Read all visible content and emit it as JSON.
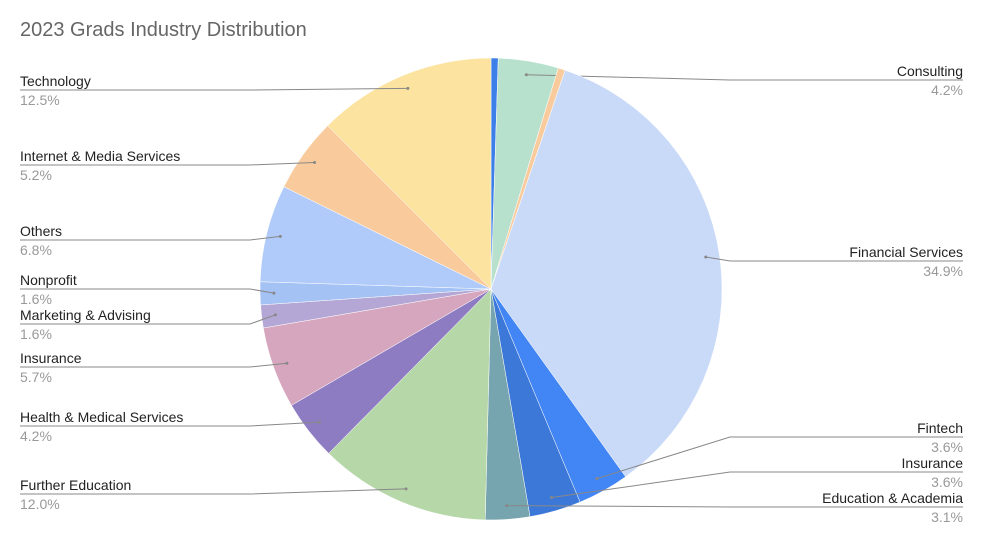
{
  "chart_data": {
    "type": "pie",
    "title": "2023 Grads Industry Distribution",
    "categories": [
      null,
      "Consulting",
      null,
      "Financial Services",
      "Fintech",
      "Insurance",
      "Education & Academia",
      "Further Education",
      "Health & Medical Services",
      "Insurance",
      "Marketing & Advising",
      "Nonprofit",
      "Others",
      "Internet & Media Services",
      "Technology"
    ],
    "values": [
      0.5,
      4.2,
      0.5,
      34.9,
      3.6,
      3.6,
      3.1,
      12.0,
      4.2,
      5.7,
      1.6,
      1.6,
      6.8,
      5.2,
      12.5
    ],
    "value_labels": [
      null,
      "4.2%",
      null,
      "34.9%",
      "3.6%",
      "3.6%",
      "3.1%",
      "12.0%",
      "4.2%",
      "5.7%",
      "1.6%",
      "1.6%",
      "6.8%",
      "5.2%",
      "12.5%"
    ],
    "colors": [
      "#3d7fe8",
      "#b7e1cd",
      "#f9cb9c",
      "#c9daf8",
      "#4285f4",
      "#3c78d8",
      "#76a5af",
      "#b6d7a8",
      "#8e7cc3",
      "#d5a6bd",
      "#b4a7d6",
      "#a4c2f4",
      "#b0cbfa",
      "#f9cb9c",
      "#fce4a0"
    ]
  }
}
